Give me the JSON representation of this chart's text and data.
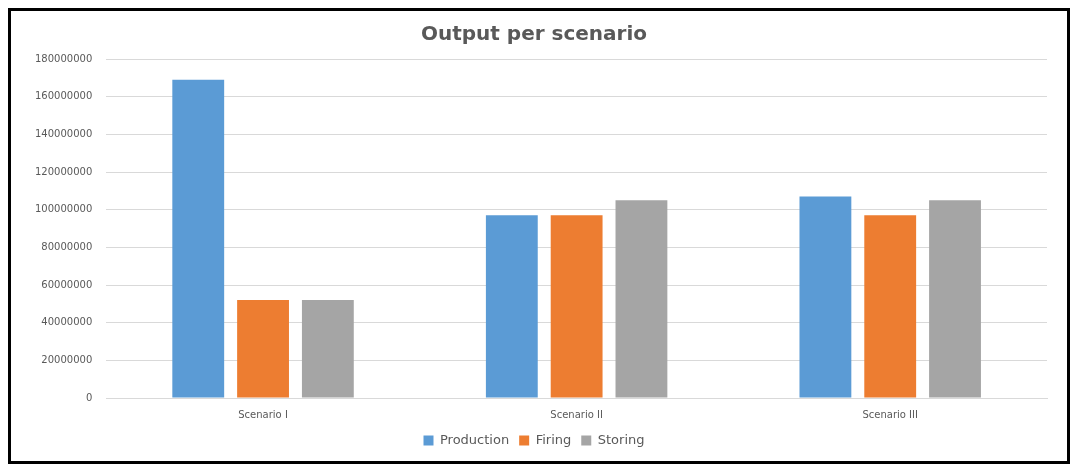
{
  "chart_data": {
    "type": "bar",
    "title": "Output per scenario",
    "categories": [
      "Scenario I",
      "Scenario II",
      "Scenario III"
    ],
    "series": [
      {
        "name": "Production",
        "color": "#5b9bd5",
        "values": [
          169000000,
          97000000,
          107000000
        ]
      },
      {
        "name": "Firing",
        "color": "#ed7d31",
        "values": [
          52000000,
          97000000,
          97000000
        ]
      },
      {
        "name": "Storing",
        "color": "#a5a5a5",
        "values": [
          52000000,
          105000000,
          105000000
        ]
      }
    ],
    "ylim": [
      0,
      180000000
    ],
    "yticks": [
      0,
      20000000,
      40000000,
      60000000,
      80000000,
      100000000,
      120000000,
      140000000,
      160000000,
      180000000
    ],
    "grid": "y",
    "legend": "bottom"
  }
}
